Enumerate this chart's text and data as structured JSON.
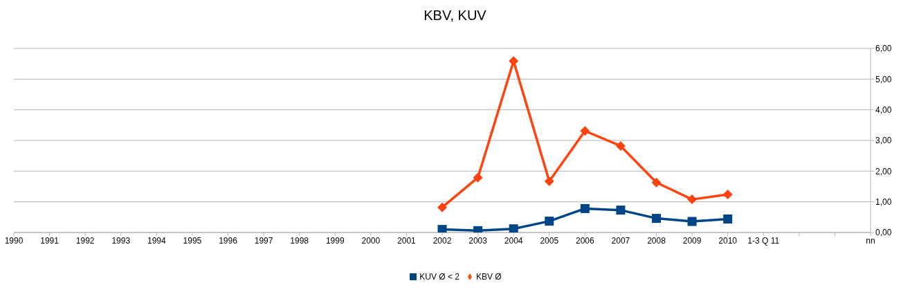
{
  "chart_data": {
    "type": "line",
    "title": "KBV, KUV",
    "categories": [
      "1990",
      "1991",
      "1992",
      "1993",
      "1994",
      "1995",
      "1996",
      "1997",
      "1998",
      "1999",
      "2000",
      "2001",
      "2002",
      "2003",
      "2004",
      "2005",
      "2006",
      "2007",
      "2008",
      "2009",
      "2010",
      "1-3 Q 11",
      null,
      null,
      "nn"
    ],
    "series": [
      {
        "name": "KUV Ø < 2",
        "color": "#004586",
        "marker": "square",
        "values": [
          null,
          null,
          null,
          null,
          null,
          null,
          null,
          null,
          null,
          null,
          null,
          null,
          0.1,
          0.06,
          0.12,
          0.37,
          0.78,
          0.73,
          0.46,
          0.36,
          0.44,
          null,
          null,
          null,
          null
        ]
      },
      {
        "name": "KBV Ø",
        "color": "#ff420e",
        "marker": "diamond",
        "values": [
          null,
          null,
          null,
          null,
          null,
          null,
          null,
          null,
          null,
          null,
          null,
          null,
          0.82,
          1.79,
          5.59,
          1.67,
          3.31,
          2.82,
          1.63,
          1.08,
          1.24,
          null,
          null,
          null,
          null
        ]
      }
    ],
    "ylim": [
      0,
      6
    ],
    "yticks": [
      {
        "value": 0,
        "label": "0,00"
      },
      {
        "value": 1,
        "label": "1,00"
      },
      {
        "value": 2,
        "label": "2,00"
      },
      {
        "value": 3,
        "label": "3,00"
      },
      {
        "value": 4,
        "label": "4,00"
      },
      {
        "value": 5,
        "label": "5,00"
      },
      {
        "value": 6,
        "label": "6,00"
      }
    ],
    "grid": "y",
    "legend": "bottom",
    "line_style": "solid"
  }
}
